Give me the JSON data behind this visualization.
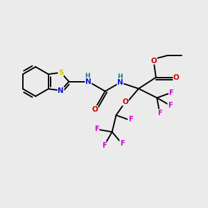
{
  "background_color": "#ebebeb",
  "bond_color": "#000000",
  "atom_colors": {
    "S": "#cccc00",
    "N": "#1414cc",
    "O": "#cc0000",
    "F": "#cc00cc",
    "H": "#008080",
    "C": "#000000"
  },
  "figsize": [
    3.0,
    3.0
  ],
  "dpi": 100,
  "lw": 1.4,
  "fs": 7.0
}
